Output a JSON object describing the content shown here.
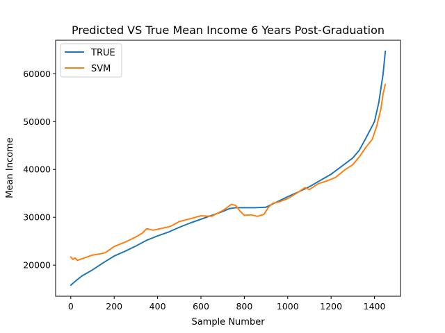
{
  "chart_data": {
    "type": "line",
    "title": "Predicted VS True Mean Income 6 Years Post-Graduation",
    "xlabel": "Sample Number",
    "ylabel": "Mean Income",
    "xlim": [
      -70,
      1520
    ],
    "ylim": [
      13500,
      67000
    ],
    "xticks": [
      0,
      200,
      400,
      600,
      800,
      1000,
      1200,
      1400
    ],
    "yticks": [
      20000,
      30000,
      40000,
      50000,
      60000
    ],
    "grid": false,
    "legend_position": "upper-left",
    "series": [
      {
        "name": "TRUE",
        "color": "#1f77b4",
        "x": [
          0,
          20,
          50,
          100,
          150,
          200,
          250,
          300,
          350,
          400,
          450,
          500,
          550,
          600,
          650,
          700,
          730,
          760,
          800,
          850,
          900,
          950,
          1000,
          1050,
          1100,
          1150,
          1200,
          1250,
          1300,
          1330,
          1360,
          1400,
          1420,
          1440,
          1450
        ],
        "values": [
          15800,
          16600,
          17700,
          19000,
          20500,
          21900,
          22900,
          24000,
          25200,
          26100,
          26900,
          27900,
          28800,
          29600,
          30400,
          31200,
          31800,
          32000,
          32000,
          32000,
          32100,
          33200,
          34300,
          35300,
          36400,
          37700,
          39000,
          40700,
          42400,
          44000,
          46500,
          50000,
          54000,
          60000,
          64700
        ]
      },
      {
        "name": "SVM",
        "color": "#ff7f0e",
        "x": [
          0,
          10,
          20,
          30,
          50,
          80,
          100,
          130,
          160,
          200,
          250,
          300,
          330,
          350,
          380,
          420,
          460,
          500,
          550,
          600,
          650,
          700,
          720,
          740,
          760,
          780,
          800,
          830,
          860,
          890,
          910,
          930,
          960,
          1000,
          1040,
          1080,
          1100,
          1140,
          1180,
          1220,
          1260,
          1300,
          1330,
          1360,
          1390,
          1410,
          1430,
          1440,
          1450
        ],
        "values": [
          21700,
          21200,
          21500,
          21000,
          21300,
          21800,
          22100,
          22300,
          22600,
          23900,
          24800,
          25900,
          26700,
          27600,
          27300,
          27700,
          28100,
          29100,
          29700,
          30300,
          30200,
          31400,
          32000,
          32700,
          32500,
          31300,
          30400,
          30500,
          30200,
          30600,
          32000,
          32900,
          33200,
          33900,
          35000,
          36200,
          35800,
          37000,
          37600,
          38300,
          39800,
          41000,
          42600,
          44600,
          46300,
          49000,
          52700,
          55800,
          57800
        ]
      }
    ]
  }
}
